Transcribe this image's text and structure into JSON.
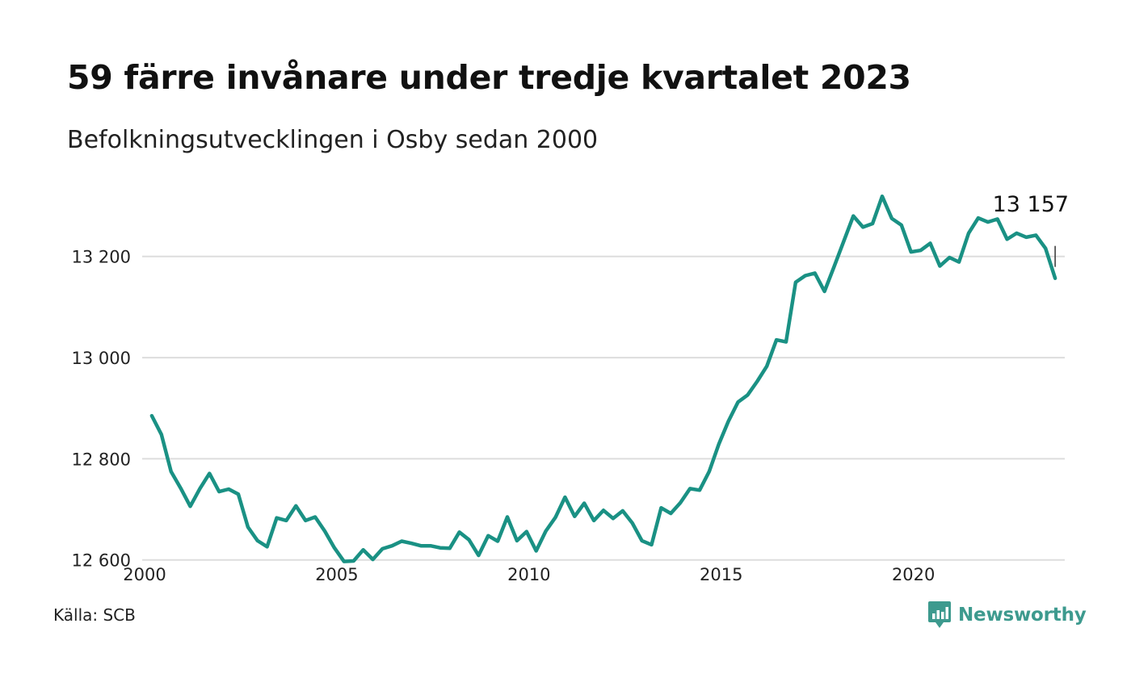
{
  "header": {
    "title": "59 färre invånare under tredje kvartalet 2023",
    "subtitle": "Befolkningsutvecklingen i Osby sedan 2000"
  },
  "footer": {
    "source": "Källa: SCB",
    "brand": "Newsworthy",
    "brand_icon": "newsworthy-chart-bubble-icon"
  },
  "colors": {
    "line": "#1a9184",
    "grid": "#dddddd",
    "text": "#111111",
    "brand": "#3d9a8e"
  },
  "chart_data": {
    "type": "line",
    "title": "59 färre invånare under tredje kvartalet 2023",
    "subtitle": "Befolkningsutvecklingen i Osby sedan 2000",
    "xlabel": "",
    "ylabel": "",
    "xlim": [
      2000.0,
      2024.0
    ],
    "ylim": [
      12590,
      13340
    ],
    "x_ticks": [
      2000,
      2005,
      2010,
      2015,
      2020
    ],
    "x_tick_labels": [
      "2000",
      "2005",
      "2010",
      "2015",
      "2020"
    ],
    "y_ticks": [
      12600,
      12800,
      13000,
      13200
    ],
    "y_tick_labels": [
      "12 600",
      "12 800",
      "13 000",
      "13 200"
    ],
    "grid": "horizontal",
    "legend": "none",
    "annotation": {
      "text": "13 157",
      "x": 2023.75,
      "y": 13157
    },
    "series": [
      {
        "color": "#1a9184",
        "x": [
          2000.25,
          2000.5,
          2000.75,
          2001.0,
          2001.25,
          2001.5,
          2001.75,
          2002.0,
          2002.25,
          2002.5,
          2002.75,
          2003.0,
          2003.25,
          2003.5,
          2003.75,
          2004.0,
          2004.25,
          2004.5,
          2004.75,
          2005.0,
          2005.25,
          2005.5,
          2005.75,
          2006.0,
          2006.25,
          2006.5,
          2006.75,
          2007.0,
          2007.25,
          2007.5,
          2007.75,
          2008.0,
          2008.25,
          2008.5,
          2008.75,
          2009.0,
          2009.25,
          2009.5,
          2009.75,
          2010.0,
          2010.25,
          2010.5,
          2010.75,
          2011.0,
          2011.25,
          2011.5,
          2011.75,
          2012.0,
          2012.25,
          2012.5,
          2012.75,
          2013.0,
          2013.25,
          2013.5,
          2013.75,
          2014.0,
          2014.25,
          2014.5,
          2014.75,
          2015.0,
          2015.25,
          2015.5,
          2015.75,
          2016.0,
          2016.25,
          2016.5,
          2016.75,
          2017.0,
          2017.25,
          2017.5,
          2017.75,
          2018.0,
          2018.25,
          2018.5,
          2018.75,
          2019.0,
          2019.25,
          2019.5,
          2019.75,
          2020.0,
          2020.25,
          2020.5,
          2020.75,
          2021.0,
          2021.25,
          2021.5,
          2021.75,
          2022.0,
          2022.25,
          2022.5,
          2022.75,
          2023.0,
          2023.25,
          2023.5,
          2023.75
        ],
        "values": [
          12885,
          12848,
          12775,
          12742,
          12706,
          12741,
          12771,
          12735,
          12740,
          12730,
          12665,
          12638,
          12626,
          12683,
          12678,
          12707,
          12678,
          12685,
          12657,
          12624,
          12597,
          12598,
          12620,
          12601,
          12622,
          12628,
          12637,
          12633,
          12628,
          12628,
          12624,
          12623,
          12655,
          12640,
          12609,
          12648,
          12637,
          12685,
          12638,
          12656,
          12618,
          12657,
          12684,
          12724,
          12686,
          12712,
          12678,
          12698,
          12682,
          12697,
          12673,
          12638,
          12630,
          12703,
          12692,
          12713,
          12741,
          12738,
          12775,
          12829,
          12874,
          12912,
          12926,
          12953,
          12983,
          13035,
          13031,
          13149,
          13162,
          13167,
          13131,
          13180,
          13230,
          13280,
          13258,
          13265,
          13319,
          13275,
          13262,
          13209,
          13212,
          13226,
          13181,
          13198,
          13189,
          13246,
          13276,
          13268,
          13274,
          13234,
          13246,
          13238,
          13242,
          13216,
          13157
        ]
      }
    ]
  }
}
